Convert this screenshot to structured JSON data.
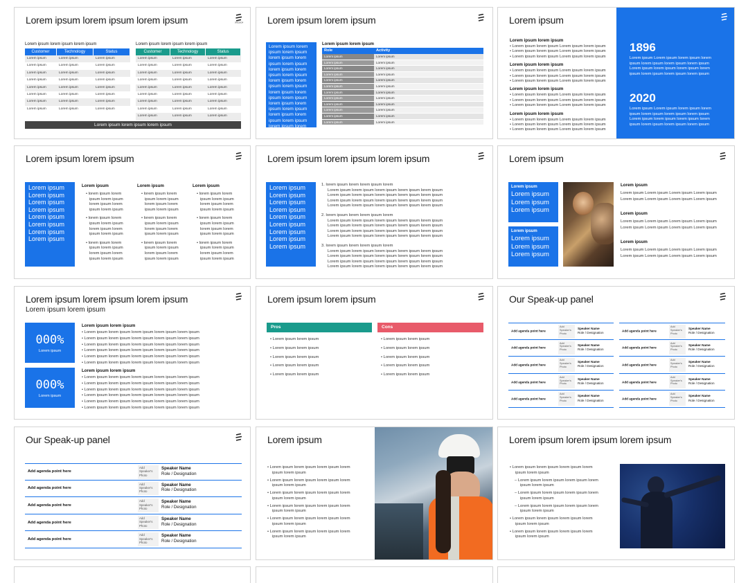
{
  "slides": {
    "s1": {
      "title": "Lorem ipsum lorem ipsum lorem ipsum",
      "caption": "Lorem ipsum lorem ipsum lorem ipsum",
      "headers": [
        "Customer",
        "Technology",
        "Status"
      ],
      "cell": "Lorem ipsum",
      "footer": "Lorem ipsum lorem ipsum lorem ipsum"
    },
    "s2": {
      "title": "Lorem ipsum lorem ipsum",
      "box_text": "Lorem ipsum lorem ipsum lorem ipsum lorem ipsum lorem ipsum lorem ipsum lorem ipsum lorem ipsum lorem ipsum lorem ipsum lorem ipsum lorem ipsum lorem ipsum lorem ipsum lorem ipsum lorem ipsum lorem ipsum lorem ipsum lorem ipsum lorem ipsum lorem ipsum lorem ipsum lorem ipsum lorem ipsum lorem ipsum lorem ipsum lorem ipsum lorem ipsum lorem ipsum lorem ipsum lorem ipsum lorem ipsum lorem ipsum lorem ipsum",
      "table_caption": "Lorem ipsum lorem ipsum",
      "headers": [
        "Role",
        "Activity"
      ],
      "cell": "Lorem ipsum"
    },
    "s3": {
      "title": "Lorem ipsum",
      "heading": "Lorem ipsum lorem ipsum",
      "bullet": "Lorem ipsum lorem ipsum Lorem ipsum lorem ipsum",
      "year1": "1896",
      "year2": "2020",
      "year_text": "Lorem ipsum Lorem ipsum lorem ipsum lorem ipsum lorem ipsum lorem ipsum lorem ipsum Lorem ipsum lorem ipsum lorem ipsum lorem ipsum lorem ipsum lorem ipsum lorem ipsum"
    },
    "s4": {
      "title": "Lorem ipsum lorem ipsum",
      "box_line": "Lorem ipsum",
      "col_heading": "Lorem ipsum",
      "col_line": "lorem ipsum lorem",
      "col_line2": "ipsum lorem ipsum"
    },
    "s5": {
      "title": "Lorem ipsum lorem ipsum lorem ipsum",
      "box_line": "Lorem ipsum",
      "num_heading": "Lorem ipsum lorem ipsum",
      "num_line": "Lorem ipsum lorem ipsum lorem ipsum lorem ipsum lorem ipsum"
    },
    "s6": {
      "title": "Lorem ipsum",
      "box_heading": "Lorem ipsum",
      "box_line": "Lorem ipsum",
      "heading": "Lorem ipsum",
      "para": "Lorem ipsum Lorem ipsum Lorem ipsum Lorem ipsum Lorem ipsum Lorem ipsum Lorem ipsum Lorem ipsum"
    },
    "s7": {
      "title": "Lorem ipsum lorem ipsum lorem ipsum",
      "subtitle": "Lorem ipsum lorem ipsum",
      "stat": "000%",
      "stat_label": "Lorem ipsum",
      "heading": "Lorem ipsum lorem ipsum",
      "bullet": "Lorem ipsum lorem ipsum lorem ipsum lorem ipsum lorem ipsum"
    },
    "s8": {
      "title": "Lorem ipsum lorem ipsum",
      "pros": "Pros",
      "cons": "Cons",
      "bullet": "Lorem ipsum lorem ipsum"
    },
    "s9": {
      "title": "Our Speak-up panel",
      "agenda": "Add agenda point here",
      "photo": "Add Speaker's Photo",
      "speaker": "Speaker Name",
      "role": "Role / Designation"
    },
    "s10": {
      "title": "Our Speak-up panel",
      "agenda": "Add agenda point here",
      "photo": "Add Speaker's Photo",
      "speaker": "Speaker Name",
      "role": "Role / Designation"
    },
    "s11": {
      "title": "Lorem ipsum",
      "bullet1": "Lorem ipsum lorem ipsum lorem ipsum lorem",
      "bullet2": "ipsum lorem ipsum"
    },
    "s12": {
      "title": "Lorem ipsum lorem ipsum lorem ipsum",
      "bullet1": "Lorem ipsum lorem ipsum lorem ipsum lorem",
      "bullet2": "ipsum lorem ipsum"
    }
  },
  "colors": {
    "blue": "#1a73e8",
    "teal": "#1a9b8c",
    "red": "#e85b6a",
    "dark": "#444444"
  }
}
